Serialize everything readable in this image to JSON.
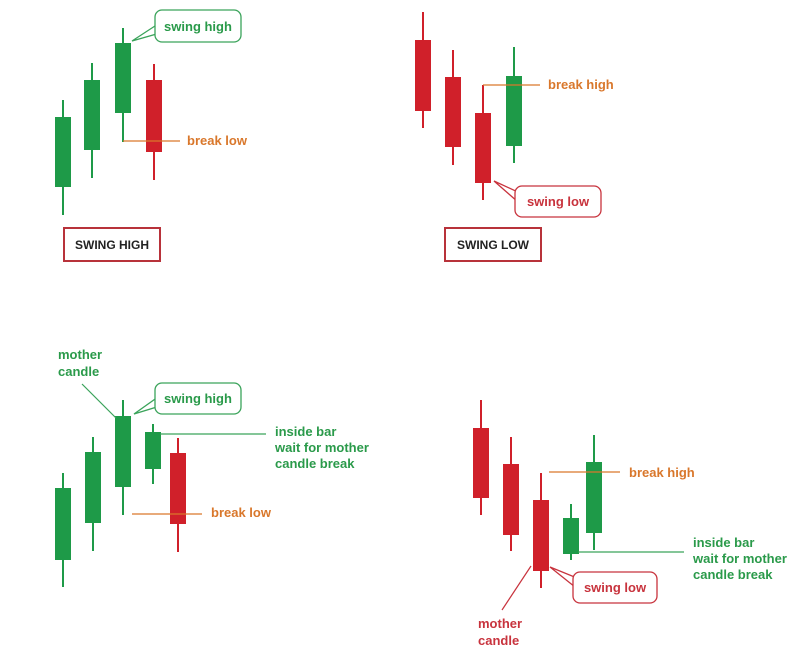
{
  "colors": {
    "bull": "#1e9a48",
    "bear": "#d0202a",
    "orange": "#d9772b",
    "green_text": "#2a9a4a",
    "red_text": "#c8333d",
    "box_border": "#b8323a",
    "callout_green_border": "#3aa35a",
    "callout_red_border": "#c8333d"
  },
  "panels": {
    "swing_high": {
      "title": "SWING HIGH",
      "callout_swing_high": "swing high",
      "label_break_low": "break low"
    },
    "swing_low": {
      "title": "SWING LOW",
      "label_break_high": "break high",
      "callout_swing_low": "swing low"
    },
    "inside_bar_high": {
      "label_mother_line1": "mother",
      "label_mother_line2": "candle",
      "callout_swing_high": "swing high",
      "label_inside_line1": "inside bar",
      "label_inside_line2": "wait for mother",
      "label_inside_line3": "candle break",
      "label_break_low": "break low"
    },
    "inside_bar_low": {
      "label_break_high": "break high",
      "label_inside_line1": "inside bar",
      "label_inside_line2": "wait for mother",
      "label_inside_line3": "candle break",
      "callout_swing_low": "swing low",
      "label_mother_line1": "mother",
      "label_mother_line2": "candle"
    }
  }
}
